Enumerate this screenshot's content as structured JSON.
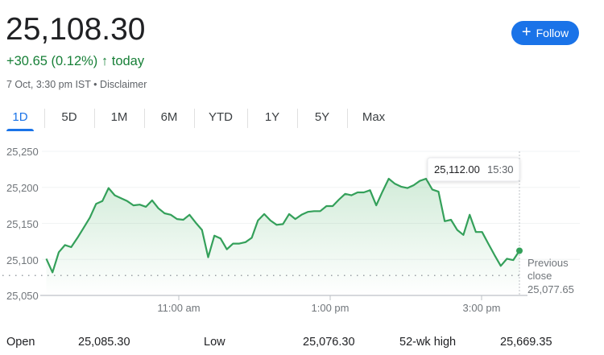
{
  "header": {
    "price": "25,108.30",
    "change": "+30.65 (0.12%)",
    "change_arrow": "↑",
    "change_suffix": "today",
    "timestamp": "7 Oct, 3:30 pm IST",
    "separator": "•",
    "disclaimer": "Disclaimer",
    "follow_label": "Follow",
    "follow_icon": "plus-icon"
  },
  "tabs": [
    {
      "label": "1D",
      "active": true
    },
    {
      "label": "5D"
    },
    {
      "label": "1M"
    },
    {
      "label": "6M"
    },
    {
      "label": "YTD"
    },
    {
      "label": "1Y"
    },
    {
      "label": "5Y"
    },
    {
      "label": "Max"
    }
  ],
  "colors": {
    "accent": "#1a73e8",
    "positive": "#188038",
    "line": "#34a05a"
  },
  "chart_data": {
    "type": "area",
    "x_start": "9:15",
    "x_end": "15:30",
    "xticks": [
      "11:00 am",
      "1:00 pm",
      "3:00 pm"
    ],
    "yticks": [
      "25,250",
      "25,200",
      "25,150",
      "25,100",
      "25,050"
    ],
    "ylim": [
      25050,
      25250
    ],
    "grid": true,
    "values": [
      25101,
      25082,
      25110,
      25120,
      25117,
      25130,
      25144,
      25158,
      25177,
      25181,
      25199,
      25189,
      25185,
      25181,
      25175,
      25176,
      25173,
      25182,
      25171,
      25164,
      25162,
      25156,
      25155,
      25162,
      25151,
      25141,
      25103,
      25133,
      25129,
      25114,
      25122,
      25122,
      25124,
      25130,
      25154,
      25163,
      25154,
      25148,
      25149,
      25163,
      25156,
      25162,
      25166,
      25167,
      25167,
      25174,
      25174,
      25183,
      25191,
      25189,
      25193,
      25193,
      25196,
      25175,
      25194,
      25212,
      25205,
      25201,
      25199,
      25203,
      25209,
      25212,
      25197,
      25194,
      25153,
      25155,
      25141,
      25134,
      25162,
      25138,
      25138,
      25122,
      25106,
      25091,
      25101,
      25099,
      25112
    ],
    "previous_close": 25077.65,
    "previous_close_label": [
      "Previous",
      "close",
      "25,077.65"
    ],
    "tooltip": {
      "value": "25,112.00",
      "time": "15:30"
    }
  },
  "stats": [
    {
      "label": "Open",
      "value": "25,085.30"
    },
    {
      "label": "Low",
      "value": "25,076.30"
    },
    {
      "label": "52-wk high",
      "value": "25,669.35"
    }
  ]
}
